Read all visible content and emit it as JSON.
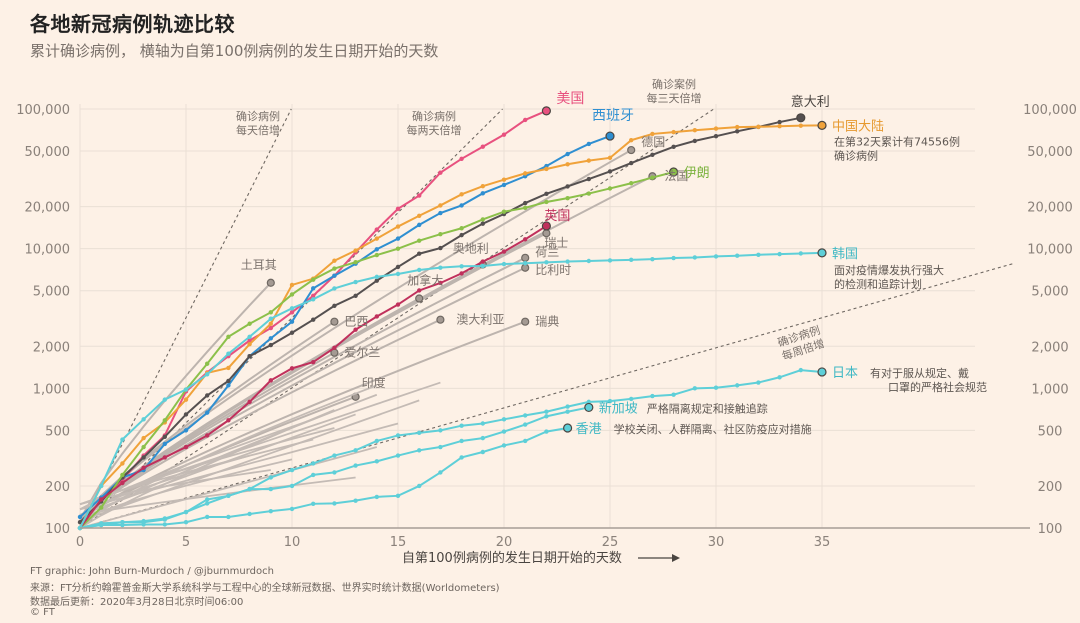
{
  "header": {
    "title": "各地新冠病例轨迹比较",
    "subtitle": "累计确诊病例，   横轴为自第100例病例的发生日期开始的天数"
  },
  "footer": {
    "credit": "FT graphic: John Burn-Murdoch / @jburnmurdoch",
    "source": "来源：FT分析约翰霍普金斯大学系统科学与工程中心的全球新冠数据、世界实时统计数据(Worldometers)",
    "updated": "数据最后更新：2020年3月28日北京时间06:00",
    "copyright": "© FT"
  },
  "chart_data": {
    "type": "line",
    "title": "各地新冠病例轨迹比较",
    "subtitle": "累计确诊病例，横轴为自第100例病例的发生日期开始的天数",
    "xlabel": "自第100例病例的发生日期开始的天数",
    "ylabel": "",
    "x_scale": "linear",
    "y_scale": "log",
    "xlim": [
      0,
      44
    ],
    "ylim": [
      100,
      100000
    ],
    "x_ticks": [
      0,
      5,
      10,
      15,
      20,
      25,
      30,
      35
    ],
    "x_tick_labels": [
      "0",
      "5",
      "10",
      "15",
      "20",
      "25",
      "30",
      "35"
    ],
    "y_ticks": [
      100,
      200,
      500,
      1000,
      2000,
      5000,
      10000,
      20000,
      50000,
      100000
    ],
    "y_tick_labels": [
      "100",
      "200",
      "500",
      "1,000",
      "2,000",
      "5,000",
      "10,000",
      "20,000",
      "50,000",
      "100,000"
    ],
    "grid": true,
    "reference_lines": [
      {
        "name": "每天倍增",
        "label": "确诊病例\n每天倍增",
        "doubling_days": 1
      },
      {
        "name": "每两天倍增",
        "label": "确诊病例\n每两天倍增",
        "doubling_days": 2
      },
      {
        "name": "每三天倍增",
        "label": "确诊案例\n每三天倍增",
        "doubling_days": 3
      },
      {
        "name": "每周倍增",
        "label": "确诊病例\n每周倍增",
        "doubling_days": 7
      }
    ],
    "series": [
      {
        "name": "美国",
        "color": "#e8517f",
        "highlight": true,
        "values": [
          100,
          160,
          220,
          330,
          460,
          950,
          1300,
          1700,
          2200,
          2700,
          3500,
          4600,
          6400,
          9400,
          13700,
          19300,
          24000,
          35000,
          44000,
          53700,
          65500,
          83500,
          97000
        ]
      },
      {
        "name": "西班牙",
        "color": "#2f8fd1",
        "highlight": true,
        "values": [
          120,
          165,
          230,
          260,
          400,
          500,
          670,
          1050,
          1700,
          2280,
          3000,
          5200,
          6400,
          7800,
          9900,
          11800,
          14800,
          18000,
          20400,
          24900,
          28600,
          33000,
          39000,
          47600,
          56200,
          64000
        ]
      },
      {
        "name": "意大利",
        "color": "#555050",
        "highlight": true,
        "values": [
          110,
          155,
          230,
          320,
          450,
          650,
          890,
          1130,
          1700,
          2040,
          2500,
          3100,
          3900,
          4600,
          5900,
          7400,
          9200,
          10100,
          12500,
          15100,
          17700,
          21200,
          24700,
          27900,
          31500,
          35700,
          41000,
          47000,
          53600,
          59100,
          63900,
          69200,
          74400,
          80600,
          86500
        ]
      },
      {
        "name": "中国大陆",
        "color": "#f0a23a",
        "highlight": true,
        "values": [
          100,
          200,
          290,
          440,
          570,
          830,
          1290,
          1400,
          2070,
          2900,
          5500,
          6100,
          8200,
          9700,
          11800,
          14400,
          17200,
          20400,
          24500,
          28000,
          31200,
          34600,
          37200,
          40200,
          42700,
          44700,
          59800,
          66300,
          68300,
          70500,
          72400,
          74200,
          74556,
          75300,
          76000,
          76300
        ]
      },
      {
        "name": "伊朗",
        "color": "#8cc04a",
        "highlight": true,
        "values": [
          100,
          140,
          240,
          380,
          590,
          980,
          1500,
          2340,
          2900,
          3500,
          4700,
          6000,
          7200,
          8000,
          9000,
          10000,
          11400,
          12700,
          14000,
          16200,
          18400,
          19600,
          21600,
          23000,
          24800,
          27000,
          29400,
          32300,
          35400
        ]
      },
      {
        "name": "英国",
        "color": "#c0305c",
        "highlight": true,
        "values": [
          100,
          160,
          210,
          270,
          320,
          380,
          460,
          590,
          800,
          1140,
          1390,
          1540,
          1950,
          2630,
          3270,
          3980,
          5020,
          5680,
          6650,
          8080,
          9530,
          11660,
          14540
        ]
      },
      {
        "name": "韩国",
        "color": "#5ecfd8",
        "highlight": true,
        "values": [
          100,
          200,
          430,
          600,
          830,
          980,
          1260,
          1770,
          2340,
          3150,
          3740,
          4340,
          5190,
          5770,
          6280,
          6590,
          7040,
          7310,
          7480,
          7510,
          7760,
          7870,
          7980,
          8090,
          8160,
          8240,
          8320,
          8410,
          8570,
          8650,
          8800,
          8900,
          9040,
          9140,
          9240,
          9330
        ]
      },
      {
        "name": "日本",
        "color": "#5ecfd8",
        "highlight": true,
        "values": [
          100,
          105,
          110,
          110,
          115,
          130,
          150,
          170,
          190,
          230,
          260,
          290,
          330,
          360,
          420,
          460,
          480,
          500,
          540,
          560,
          600,
          640,
          680,
          740,
          800,
          810,
          840,
          880,
          900,
          1000,
          1010,
          1050,
          1100,
          1200,
          1350,
          1310
        ]
      },
      {
        "name": "新加坡",
        "color": "#5ecfd8",
        "highlight": true,
        "values": [
          100,
          108,
          110,
          112,
          117,
          130,
          160,
          170,
          190,
          190,
          200,
          240,
          250,
          280,
          300,
          330,
          360,
          380,
          420,
          440,
          490,
          550,
          630,
          680,
          730
        ]
      },
      {
        "name": "香港",
        "color": "#5ecfd8",
        "highlight": true,
        "values": [
          100,
          105,
          105,
          106,
          106,
          110,
          120,
          120,
          126,
          132,
          137,
          149,
          150,
          157,
          167,
          170,
          200,
          250,
          320,
          350,
          390,
          420,
          490,
          520
        ]
      },
      {
        "name": "德国",
        "color": "#bdb4ae",
        "highlight": false,
        "label_value": 50800,
        "label_day": 26
      },
      {
        "name": "法国",
        "color": "#bdb4ae",
        "highlight": false,
        "label_value": 33000,
        "label_day": 27
      },
      {
        "name": "瑞士",
        "color": "#bdb4ae",
        "highlight": false,
        "label_value": 12900,
        "label_day": 22
      },
      {
        "name": "奥地利",
        "color": "#bdb4ae",
        "highlight": false,
        "label_value": 7700,
        "label_day": 19
      },
      {
        "name": "荷兰",
        "color": "#bdb4ae",
        "highlight": false,
        "label_value": 8600,
        "label_day": 21
      },
      {
        "name": "比利时",
        "color": "#bdb4ae",
        "highlight": false,
        "label_value": 7300,
        "label_day": 21
      },
      {
        "name": "加拿大",
        "color": "#bdb4ae",
        "highlight": false,
        "label_value": 4400,
        "label_day": 16
      },
      {
        "name": "土耳其",
        "color": "#bdb4ae",
        "highlight": false,
        "label_value": 5700,
        "label_day": 9
      },
      {
        "name": "巴西",
        "color": "#bdb4ae",
        "highlight": false,
        "label_value": 3000,
        "label_day": 12
      },
      {
        "name": "澳大利亚",
        "color": "#bdb4ae",
        "highlight": false,
        "label_value": 3100,
        "label_day": 17
      },
      {
        "name": "瑞典",
        "color": "#bdb4ae",
        "highlight": false,
        "label_value": 3000,
        "label_day": 21
      },
      {
        "name": "爱尔兰",
        "color": "#bdb4ae",
        "highlight": false,
        "label_value": 1800,
        "label_day": 12
      },
      {
        "name": "印度",
        "color": "#bdb4ae",
        "highlight": false,
        "label_value": 870,
        "label_day": 13
      }
    ],
    "annotations": [
      {
        "series": "中国大陆",
        "text": "在第32天累计有74556例\n确诊病例"
      },
      {
        "series": "韩国",
        "text": "面对疫情爆发执行强大\n的检测和追踪计划"
      },
      {
        "series": "日本",
        "text": "有对于服从规定、戴\n口罩的严格社会规范"
      },
      {
        "series": "新加坡",
        "text": "严格隔离规定和接触追踪"
      },
      {
        "series": "香港",
        "text": "学校关闭、人群隔离、社区防疫应对措施"
      }
    ],
    "colors": {
      "background": "#fdf1e6",
      "grid": "#eadfd5",
      "axis_text": "#8a817a",
      "other_countries": "#bdb4ae",
      "reference": "#6f6862"
    }
  }
}
